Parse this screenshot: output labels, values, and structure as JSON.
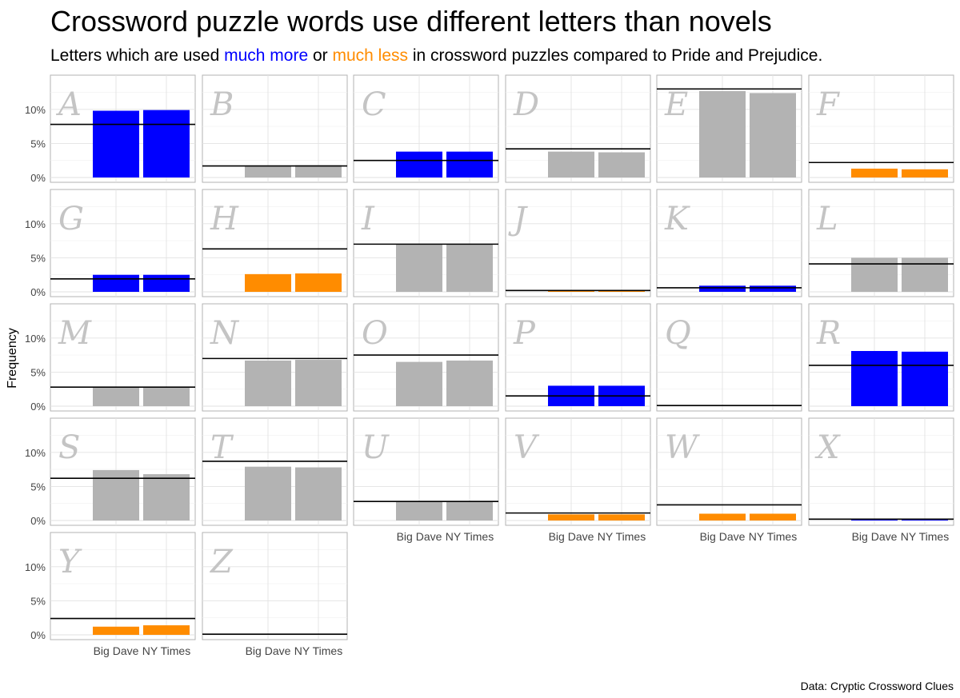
{
  "title": "Crossword puzzle words use different letters than novels",
  "subtitle": {
    "prefix": "Letters which are used ",
    "more": "much more",
    "middle": " or ",
    "less": "much less",
    "suffix": " in crossword puzzles compared to Pride and Prejudice."
  },
  "caption": "Data: Cryptic Crossword Clues",
  "colors": {
    "more": "#0000ff",
    "less": "#ff8c00",
    "neutral": "#b3b3b3",
    "reference_line": "#000000"
  },
  "chart_data": {
    "type": "bar",
    "facets": "letters A–Z, 6 columns, free x-axis, shared y-axis",
    "categories": [
      "Big Dave",
      "NY Times"
    ],
    "ylabel": "Frequency",
    "ylim": [
      0,
      13.5
    ],
    "yticks": [
      "0%",
      "5%",
      "10%"
    ],
    "ytick_values": [
      0,
      5,
      10
    ],
    "grid": true,
    "panels": [
      {
        "letter": "A",
        "values": [
          9.8,
          9.9
        ],
        "reference": 7.8,
        "class": "more"
      },
      {
        "letter": "B",
        "values": [
          1.7,
          1.8
        ],
        "reference": 1.7,
        "class": "neutral"
      },
      {
        "letter": "C",
        "values": [
          3.8,
          3.8
        ],
        "reference": 2.5,
        "class": "more"
      },
      {
        "letter": "D",
        "values": [
          3.8,
          3.7
        ],
        "reference": 4.2,
        "class": "neutral"
      },
      {
        "letter": "E",
        "values": [
          12.7,
          12.4
        ],
        "reference": 13.0,
        "class": "neutral"
      },
      {
        "letter": "F",
        "values": [
          1.3,
          1.2
        ],
        "reference": 2.2,
        "class": "less"
      },
      {
        "letter": "G",
        "values": [
          2.5,
          2.5
        ],
        "reference": 1.9,
        "class": "more"
      },
      {
        "letter": "H",
        "values": [
          2.6,
          2.7
        ],
        "reference": 6.3,
        "class": "less"
      },
      {
        "letter": "I",
        "values": [
          7.0,
          7.0
        ],
        "reference": 7.0,
        "class": "neutral"
      },
      {
        "letter": "J",
        "values": [
          0.2,
          0.2
        ],
        "reference": 0.2,
        "class": "less"
      },
      {
        "letter": "K",
        "values": [
          0.9,
          0.9
        ],
        "reference": 0.6,
        "class": "more"
      },
      {
        "letter": "L",
        "values": [
          5.0,
          5.0
        ],
        "reference": 4.1,
        "class": "neutral"
      },
      {
        "letter": "M",
        "values": [
          2.7,
          2.7
        ],
        "reference": 2.8,
        "class": "neutral"
      },
      {
        "letter": "N",
        "values": [
          6.7,
          6.8
        ],
        "reference": 7.0,
        "class": "neutral"
      },
      {
        "letter": "O",
        "values": [
          6.5,
          6.7
        ],
        "reference": 7.5,
        "class": "neutral"
      },
      {
        "letter": "P",
        "values": [
          3.0,
          3.0
        ],
        "reference": 1.5,
        "class": "more"
      },
      {
        "letter": "Q",
        "values": [
          0.1,
          0.1
        ],
        "reference": 0.1,
        "class": "neutral"
      },
      {
        "letter": "R",
        "values": [
          8.1,
          8.0
        ],
        "reference": 6.0,
        "class": "more"
      },
      {
        "letter": "S",
        "values": [
          7.4,
          6.8
        ],
        "reference": 6.2,
        "class": "neutral"
      },
      {
        "letter": "T",
        "values": [
          7.9,
          7.8
        ],
        "reference": 8.7,
        "class": "neutral"
      },
      {
        "letter": "U",
        "values": [
          2.8,
          2.8
        ],
        "reference": 2.8,
        "class": "neutral"
      },
      {
        "letter": "V",
        "values": [
          0.9,
          0.9
        ],
        "reference": 1.1,
        "class": "less"
      },
      {
        "letter": "W",
        "values": [
          1.0,
          1.0
        ],
        "reference": 2.3,
        "class": "less"
      },
      {
        "letter": "X",
        "values": [
          0.2,
          0.2
        ],
        "reference": 0.2,
        "class": "more"
      },
      {
        "letter": "Y",
        "values": [
          1.2,
          1.4
        ],
        "reference": 2.4,
        "class": "less"
      },
      {
        "letter": "Z",
        "values": [
          0.1,
          0.1
        ],
        "reference": 0.1,
        "class": "less"
      }
    ]
  }
}
